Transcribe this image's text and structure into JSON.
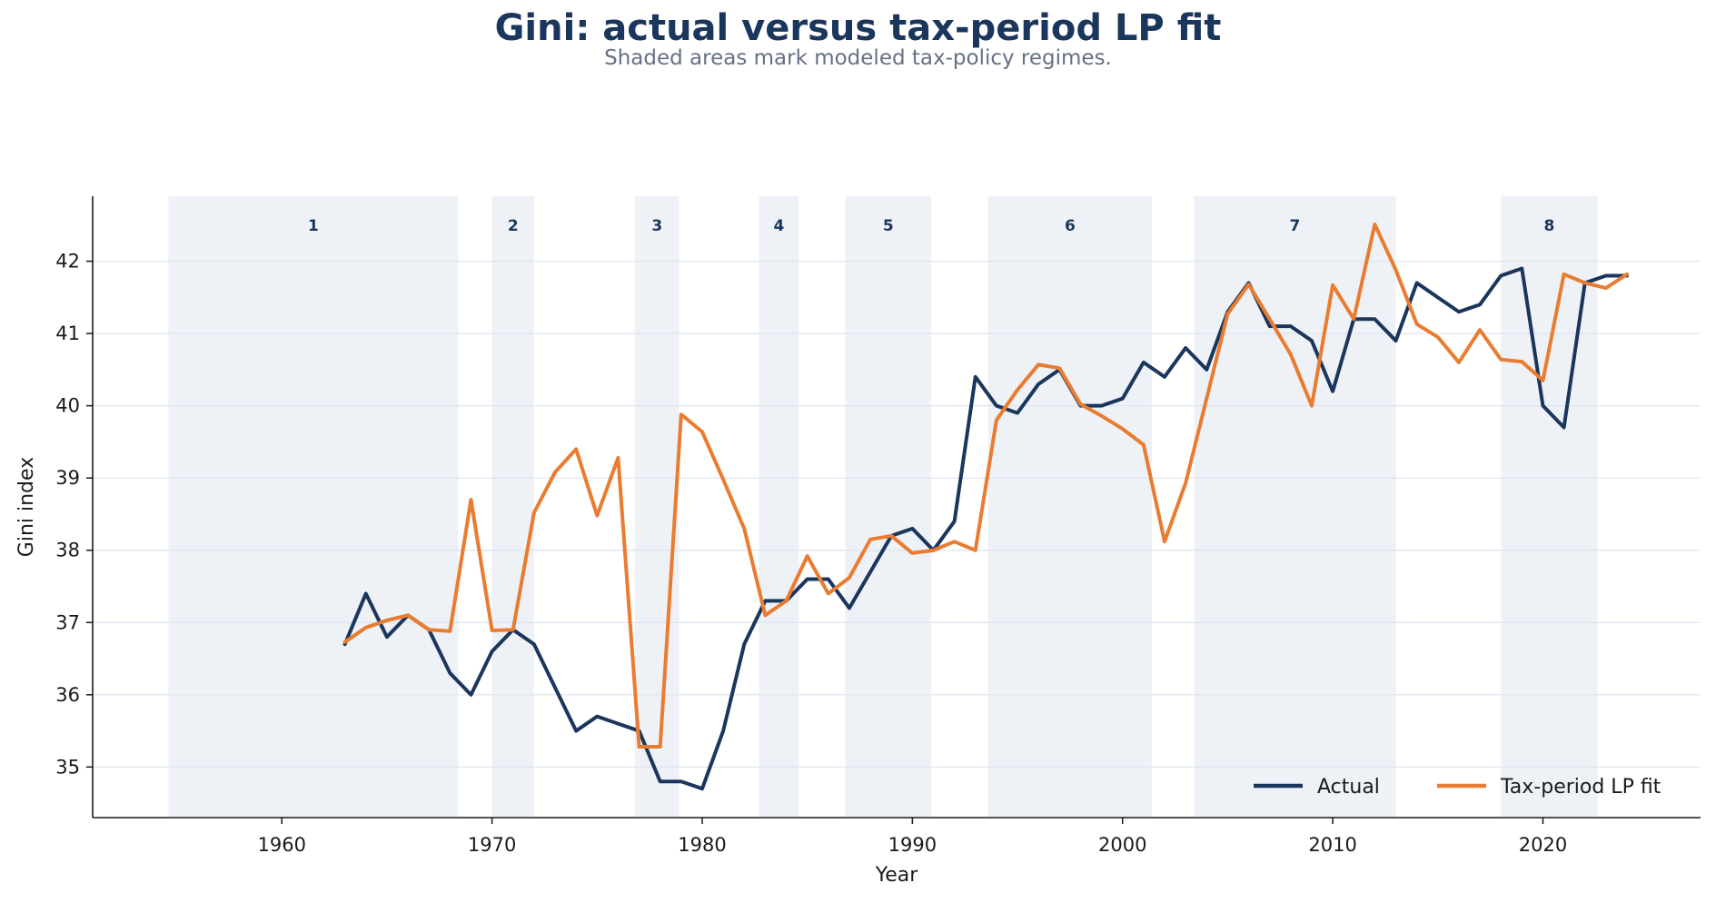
{
  "chart_data": {
    "type": "line",
    "title": "Gini: actual versus tax-period LP fit",
    "subtitle": "Shaded areas mark modeled tax-policy regimes.",
    "xlabel": "Year",
    "ylabel": "Gini index",
    "xlim": [
      1951,
      2027.5
    ],
    "ylim": [
      34.3,
      42.9
    ],
    "x_ticks": [
      1960,
      1970,
      1980,
      1990,
      2000,
      2010,
      2020
    ],
    "y_ticks": [
      35,
      36,
      37,
      38,
      39,
      40,
      41,
      42
    ],
    "grid": "horizontal",
    "legend_position": "bottom-right",
    "regimes": [
      {
        "label": "1",
        "start": 1954.6,
        "end": 1968.4
      },
      {
        "label": "2",
        "start": 1970.0,
        "end": 1972.0
      },
      {
        "label": "3",
        "start": 1976.8,
        "end": 1978.9
      },
      {
        "label": "4",
        "start": 1982.7,
        "end": 1984.6
      },
      {
        "label": "5",
        "start": 1986.8,
        "end": 1990.9
      },
      {
        "label": "6",
        "start": 1993.6,
        "end": 2001.4
      },
      {
        "label": "7",
        "start": 2003.4,
        "end": 2013.0
      },
      {
        "label": "8",
        "start": 2018.0,
        "end": 2022.6
      }
    ],
    "x": [
      1963,
      1964,
      1965,
      1966,
      1967,
      1968,
      1969,
      1970,
      1971,
      1972,
      1973,
      1974,
      1975,
      1976,
      1977,
      1978,
      1979,
      1980,
      1981,
      1982,
      1983,
      1984,
      1985,
      1986,
      1987,
      1988,
      1989,
      1990,
      1991,
      1992,
      1993,
      1994,
      1995,
      1996,
      1997,
      1998,
      1999,
      2000,
      2001,
      2002,
      2003,
      2004,
      2005,
      2006,
      2007,
      2008,
      2009,
      2010,
      2011,
      2012,
      2013,
      2014,
      2015,
      2016,
      2017,
      2018,
      2019,
      2020,
      2021,
      2022,
      2023,
      2024
    ],
    "series": [
      {
        "name": "Actual",
        "color": "#1b365d",
        "values": [
          36.7,
          37.4,
          36.8,
          37.1,
          36.9,
          36.3,
          36.0,
          36.6,
          36.9,
          36.7,
          36.1,
          35.5,
          35.7,
          35.6,
          35.5,
          34.8,
          34.8,
          34.7,
          35.5,
          36.7,
          37.3,
          37.3,
          37.6,
          37.6,
          37.2,
          37.7,
          38.2,
          38.3,
          38.0,
          38.4,
          40.4,
          40.0,
          39.9,
          40.3,
          40.5,
          40.0,
          40.0,
          40.1,
          40.6,
          40.4,
          40.8,
          40.5,
          41.3,
          41.7,
          41.1,
          41.1,
          40.9,
          40.2,
          41.2,
          41.2,
          40.9,
          41.7,
          41.5,
          41.3,
          41.4,
          41.8,
          41.9,
          40.0,
          39.7,
          41.7,
          41.8,
          41.8
        ]
      },
      {
        "name": "Tax-period LP fit",
        "color": "#e97c30",
        "values": [
          36.73,
          36.93,
          37.03,
          37.1,
          36.9,
          36.88,
          38.7,
          36.89,
          36.9,
          38.52,
          39.08,
          39.4,
          38.48,
          39.28,
          35.28,
          35.28,
          39.88,
          39.64,
          38.98,
          38.3,
          37.1,
          37.3,
          37.92,
          37.4,
          37.62,
          38.15,
          38.2,
          37.96,
          38.0,
          38.12,
          38.0,
          39.8,
          40.22,
          40.57,
          40.52,
          40.02,
          39.86,
          39.68,
          39.46,
          38.12,
          38.93,
          40.1,
          41.27,
          41.68,
          41.2,
          40.71,
          40.0,
          41.67,
          41.2,
          42.51,
          41.88,
          41.13,
          40.95,
          40.6,
          41.05,
          40.64,
          40.61,
          40.35,
          41.82,
          41.7,
          41.63,
          41.82
        ]
      }
    ]
  }
}
